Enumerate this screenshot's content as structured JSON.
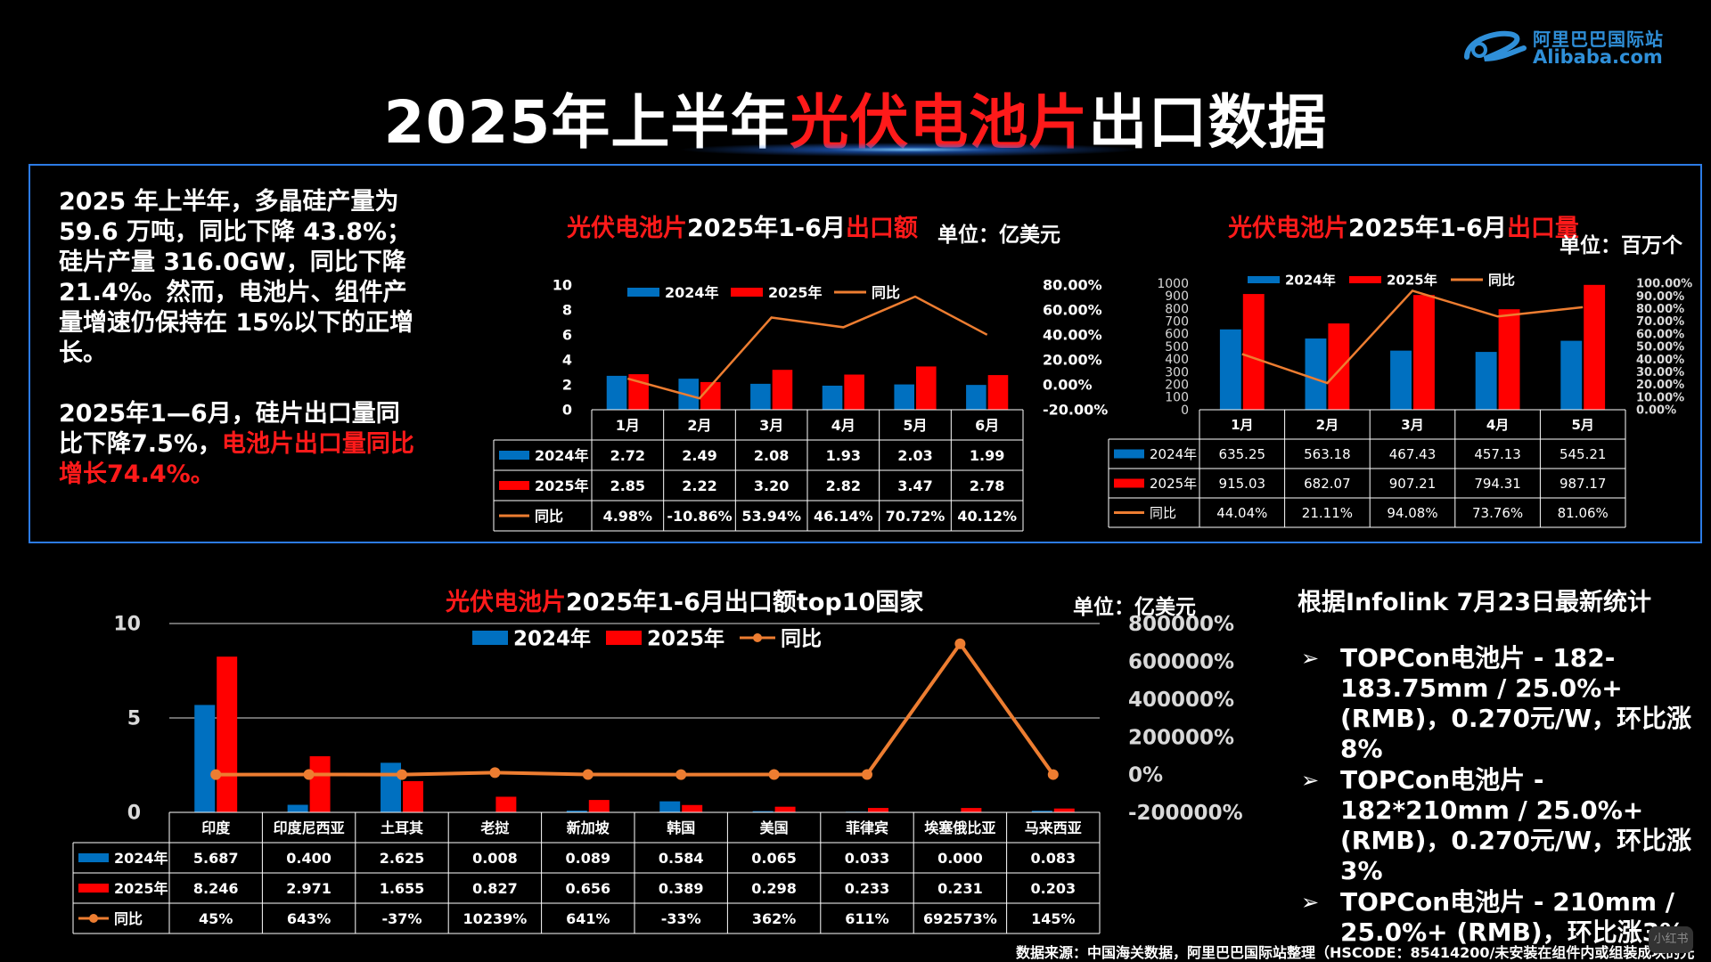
{
  "logo": {
    "cn": "阿里巴巴国际站",
    "en": "Alibaba.com"
  },
  "title": {
    "prefix": "2025年上半年",
    "highlight": "光伏电池片",
    "suffix": "出口数据"
  },
  "intro": {
    "p1": "2025 年上半年，多晶硅产量为 59.6 万吨，同比下降 43.8%；硅片产量 316.0GW，同比下降 21.4%。然而，电池片、组件产量增速仍保持在 15%以下的正增长。",
    "p2_white": "2025年1—6月，硅片出口量同比下降7.5%，",
    "p2_red": "电池片出口量同比增长74.4%。"
  },
  "stats": {
    "heading": "根据Infolink 7月23日最新统计",
    "items": [
      "TOPCon电池片 - 182-183.75mm / 25.0%+ (RMB)，0.270元/W，环比涨8%",
      "TOPCon电池片 - 182*210mm / 25.0%+ (RMB)，0.270元/W，环比涨3%",
      "TOPCon电池片 - 210mm / 25.0%+ (RMB)，环比涨3%"
    ]
  },
  "source": "数据来源：中国海关数据，阿里巴巴国际站整理（HSCODE：85414200/未安装在组件内或组装成块的光",
  "watermark": "小红书",
  "colors": {
    "s2024": "#0070c0",
    "s2025": "#ff0000",
    "yoy": "#ed7d31",
    "panel_border": "#2c7be5",
    "accent_red": "#ff1a1a"
  },
  "chart_data": [
    {
      "id": "export_value_h1",
      "type": "bar",
      "title_parts": [
        "光伏电池片",
        "2025年1-6月",
        "出口额"
      ],
      "unit_label": "单位：亿美元",
      "categories": [
        "1月",
        "2月",
        "3月",
        "4月",
        "5月",
        "6月"
      ],
      "series": [
        {
          "name": "2024年",
          "values": [
            2.72,
            2.49,
            2.08,
            1.93,
            2.03,
            1.99
          ],
          "labels": [
            "2.72",
            "2.49",
            "2.08",
            "1.93",
            "2.03",
            "1.99"
          ]
        },
        {
          "name": "2025年",
          "values": [
            2.85,
            2.22,
            3.2,
            2.82,
            3.47,
            2.78
          ],
          "labels": [
            "2.85",
            "2.22",
            "3.20",
            "2.82",
            "3.47",
            "2.78"
          ]
        },
        {
          "name": "同比",
          "type": "line",
          "axis": "right",
          "values": [
            4.98,
            -10.86,
            53.94,
            46.14,
            70.72,
            40.12
          ],
          "labels": [
            "4.98%",
            "-10.86%",
            "53.94%",
            "46.14%",
            "70.72%",
            "40.12%"
          ]
        }
      ],
      "ylim": [
        0,
        10
      ],
      "yticks": [
        "0",
        "2",
        "4",
        "6",
        "8",
        "10"
      ],
      "y2lim": [
        -20,
        80
      ],
      "y2ticks": [
        "-20.00%",
        "0.00%",
        "20.00%",
        "40.00%",
        "60.00%",
        "80.00%"
      ],
      "legend": "top",
      "grid": false
    },
    {
      "id": "export_volume_h1",
      "type": "bar",
      "title_parts": [
        "光伏电池片",
        "2025年1-6月",
        "出口量"
      ],
      "unit_label": "单位：百万个",
      "categories": [
        "1月",
        "2月",
        "3月",
        "4月",
        "5月"
      ],
      "series": [
        {
          "name": "2024年",
          "values": [
            635.25,
            563.18,
            467.43,
            457.13,
            545.21
          ],
          "labels": [
            "635.25",
            "563.18",
            "467.43",
            "457.13",
            "545.21"
          ]
        },
        {
          "name": "2025年",
          "values": [
            915.03,
            682.07,
            907.21,
            794.31,
            987.17
          ],
          "labels": [
            "915.03",
            "682.07",
            "907.21",
            "794.31",
            "987.17"
          ]
        },
        {
          "name": "同比",
          "type": "line",
          "axis": "right",
          "values": [
            44.04,
            21.11,
            94.08,
            73.76,
            81.06
          ],
          "labels": [
            "44.04%",
            "21.11%",
            "94.08%",
            "73.76%",
            "81.06%"
          ]
        }
      ],
      "ylim": [
        0,
        1000
      ],
      "yticks": [
        "0",
        "100",
        "200",
        "300",
        "400",
        "500",
        "600",
        "700",
        "800",
        "900",
        "1000"
      ],
      "y2lim": [
        0,
        100
      ],
      "y2ticks": [
        "0.00%",
        "10.00%",
        "20.00%",
        "30.00%",
        "40.00%",
        "50.00%",
        "60.00%",
        "70.00%",
        "80.00%",
        "90.00%",
        "100.00%"
      ],
      "legend": "top",
      "grid": false
    },
    {
      "id": "top10_countries",
      "type": "bar",
      "title_parts": [
        "光伏电池片",
        "2025年1-6月出口额top10国家",
        ""
      ],
      "unit_label": "单位：亿美元",
      "categories": [
        "印度",
        "印度尼西亚",
        "土耳其",
        "老挝",
        "新加坡",
        "韩国",
        "美国",
        "菲律宾",
        "埃塞俄比亚",
        "马来西亚"
      ],
      "series": [
        {
          "name": "2024年",
          "values": [
            5.687,
            0.4,
            2.625,
            0.008,
            0.089,
            0.584,
            0.065,
            0.033,
            0.0,
            0.083
          ],
          "labels": [
            "5.687",
            "0.400",
            "2.625",
            "0.008",
            "0.089",
            "0.584",
            "0.065",
            "0.033",
            "0.000",
            "0.083"
          ]
        },
        {
          "name": "2025年",
          "values": [
            8.246,
            2.971,
            1.655,
            0.827,
            0.656,
            0.389,
            0.298,
            0.233,
            0.231,
            0.203
          ],
          "labels": [
            "8.246",
            "2.971",
            "1.655",
            "0.827",
            "0.656",
            "0.389",
            "0.298",
            "0.233",
            "0.231",
            "0.203"
          ]
        },
        {
          "name": "同比",
          "type": "line",
          "axis": "right",
          "values": [
            45,
            643,
            -37,
            10239,
            641,
            -33,
            362,
            611,
            692573,
            145
          ],
          "labels": [
            "45%",
            "643%",
            "-37%",
            "10239%",
            "641%",
            "-33%",
            "362%",
            "611%",
            "692573%",
            "145%"
          ]
        }
      ],
      "ylim": [
        0,
        10
      ],
      "yticks": [
        "0",
        "5",
        "10"
      ],
      "y2lim": [
        -200000,
        800000
      ],
      "y2ticks": [
        "-200000%",
        "0%",
        "200000%",
        "400000%",
        "600000%",
        "800000%"
      ],
      "legend": "top",
      "grid": true
    }
  ]
}
